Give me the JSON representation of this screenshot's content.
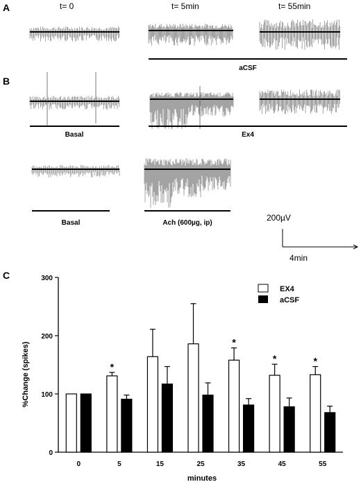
{
  "panels": {
    "a": "A",
    "b": "B",
    "c": "C"
  },
  "time_labels": [
    "t= 0",
    "t= 5min",
    "t= 55min"
  ],
  "bar_labels": {
    "acsf": "aCSF",
    "basal1": "Basal",
    "ex4": "Ex4",
    "basal2": "Basal",
    "ach": "Ach (600µg, ip)"
  },
  "scale_bar": {
    "vertical": "200µV",
    "horizontal": "4min"
  },
  "chart_data": {
    "type": "bar",
    "xlabel": "minutes",
    "ylabel": "%Change (spikes)",
    "ylim": [
      0,
      300
    ],
    "yticks": [
      0,
      100,
      200,
      300
    ],
    "categories": [
      "0",
      "5",
      "15",
      "25",
      "35",
      "45",
      "55"
    ],
    "legend_position": "top-right",
    "series": [
      {
        "name": "EX4",
        "fill": "#ffffff",
        "values": [
          100,
          131,
          164,
          186,
          158,
          132,
          133
        ],
        "errors": [
          0,
          6,
          47,
          69,
          21,
          19,
          14
        ]
      },
      {
        "name": "aCSF",
        "fill": "#000000",
        "values": [
          100,
          91,
          117,
          98,
          81,
          78,
          68
        ],
        "errors": [
          0,
          7,
          30,
          21,
          11,
          15,
          11
        ]
      }
    ],
    "significance": {
      "marker": "*",
      "categories": [
        "5",
        "35",
        "45",
        "55"
      ]
    }
  }
}
